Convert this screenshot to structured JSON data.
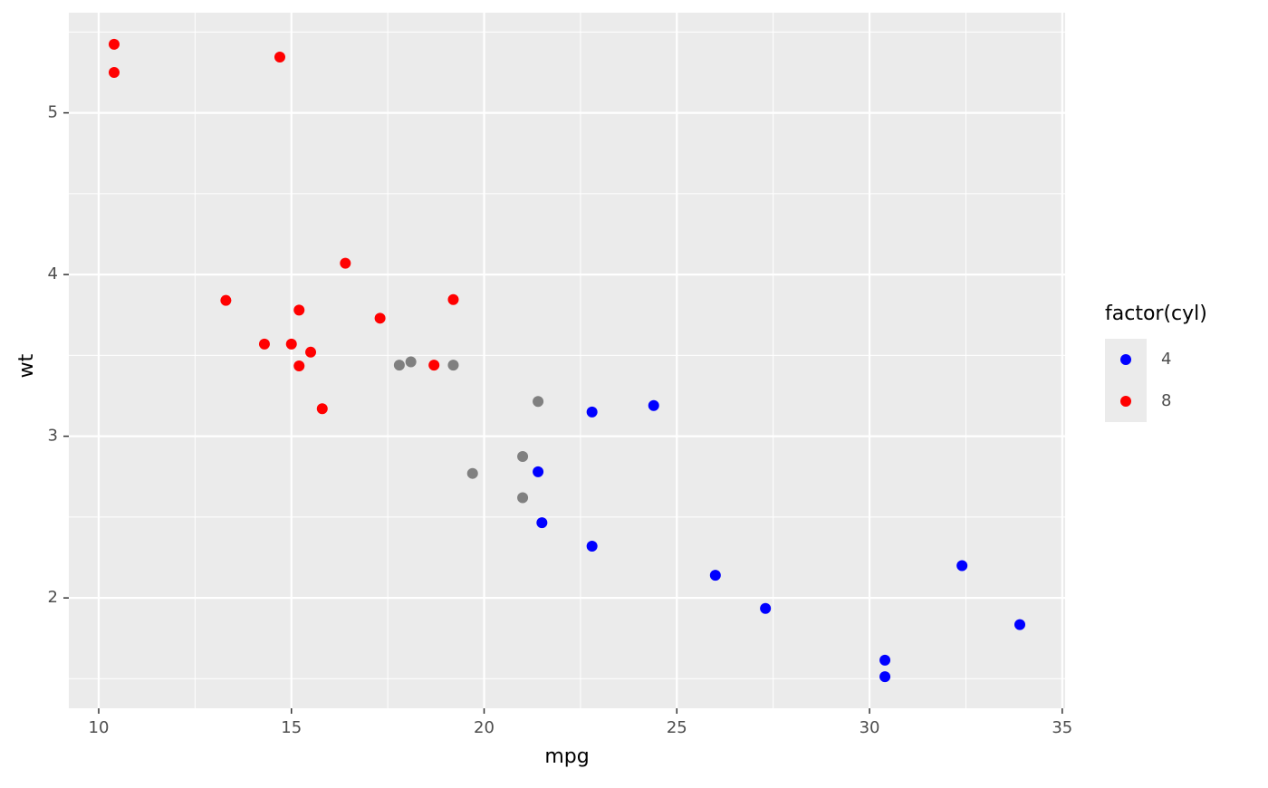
{
  "chart_data": {
    "type": "scatter",
    "x_label": "mpg",
    "y_label": "wt",
    "legend_title": "factor(cyl)",
    "legend_position": "right",
    "xlim": [
      9.225,
      35.075
    ],
    "ylim": [
      1.31745,
      5.61955
    ],
    "xticks": [
      10,
      15,
      20,
      25,
      30,
      35
    ],
    "yticks": [
      2,
      3,
      4,
      5
    ],
    "xminor": [
      12.5,
      17.5,
      22.5,
      27.5,
      32.5
    ],
    "yminor": [
      1.5,
      2.5,
      3.5,
      4.5,
      5.5
    ],
    "grid": true,
    "series": [
      {
        "name": "4",
        "color": "#0000ff",
        "x": [
          22.8,
          24.4,
          22.8,
          32.4,
          30.4,
          33.9,
          21.5,
          27.3,
          26.0,
          30.4,
          21.4
        ],
        "values": [
          2.32,
          3.19,
          3.15,
          2.2,
          1.615,
          1.835,
          2.465,
          1.935,
          2.14,
          1.513,
          2.78
        ]
      },
      {
        "name": "8",
        "color": "#ff0000",
        "x": [
          18.7,
          14.3,
          16.4,
          17.3,
          15.2,
          10.4,
          10.4,
          14.7,
          15.5,
          15.2,
          13.3,
          19.2,
          15.8,
          15.0
        ],
        "values": [
          3.44,
          3.57,
          4.07,
          3.73,
          3.78,
          5.25,
          5.424,
          5.345,
          3.52,
          3.435,
          3.84,
          3.845,
          3.17,
          3.57
        ]
      },
      {
        "color": "#808080",
        "x": [
          21.0,
          21.0,
          21.4,
          18.1,
          19.2,
          17.8,
          19.7
        ],
        "values": [
          2.62,
          2.875,
          3.215,
          3.46,
          3.44,
          3.44,
          2.77
        ]
      }
    ]
  }
}
